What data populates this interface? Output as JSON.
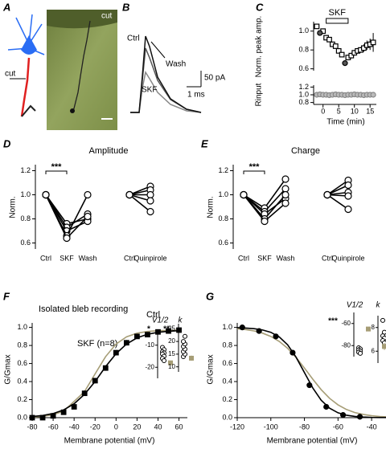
{
  "panel_a": {
    "label": "A",
    "cut_top": "cut",
    "cut_left": "cut"
  },
  "panel_b": {
    "label": "B",
    "ctrl": "Ctrl",
    "wash": "Wash",
    "skf": "SKF",
    "scale_current": "50 pA",
    "scale_time": "1 ms"
  },
  "chart_data": [
    {
      "type": "scatter",
      "panel": "C",
      "ylabel": "Norm. peak amp.",
      "xlim": [
        -3,
        17
      ],
      "ylim": [
        0.58,
        1.1
      ],
      "yticks": [
        0.6,
        0.8,
        {
          "value": 1,
          "label": "1.0"
        }
      ],
      "bar": {
        "label": "SKF",
        "start": 1,
        "end": 8
      },
      "series": [
        {
          "color": "#000000",
          "marker": "square",
          "fill": "#ffffff",
          "x": [
            -2,
            0,
            1,
            2,
            3,
            4,
            5,
            6,
            8,
            9,
            10,
            11,
            12,
            13,
            14,
            15,
            16
          ],
          "values": [
            1.05,
            1.0,
            0.93,
            0.91,
            0.86,
            0.84,
            0.79,
            0.75,
            0.72,
            0.74,
            0.77,
            0.79,
            0.8,
            0.82,
            0.85,
            0.86,
            0.88
          ],
          "errors": [
            0.02,
            0.02,
            0.02,
            0.02,
            0.02,
            0.02,
            0.02,
            0.02,
            0.03,
            0.03,
            0.03,
            0.03,
            0.03,
            0.04,
            0.05,
            0.06,
            0.1
          ]
        },
        {
          "color": "#000000",
          "marker": "circle",
          "fill": "#555555",
          "x": [
            -1,
            7
          ],
          "values": [
            0.98,
            0.66
          ],
          "errors": [
            0.02,
            0.02
          ]
        }
      ]
    },
    {
      "type": "scatter",
      "ylabel": "Rinput",
      "xlabel": "Time (min)",
      "xlim": [
        -3,
        17
      ],
      "xticks": [
        0,
        5,
        10,
        15
      ],
      "ylim": [
        0.75,
        1.25
      ],
      "yticks": [
        0.8,
        {
          "value": 1,
          "label": "1.0"
        },
        1.2
      ],
      "series": [
        {
          "color": "#888888",
          "marker": "circle",
          "fill": "#bbbbbb",
          "x": [
            -2,
            -1,
            0,
            1,
            2,
            3,
            4,
            5,
            6,
            7,
            8,
            9,
            10,
            11,
            12,
            13,
            14,
            15,
            16
          ],
          "values": [
            1.0,
            1.01,
            1.0,
            1.0,
            0.99,
            1.0,
            1.01,
            1.0,
            1.0,
            0.99,
            1.0,
            1.0,
            1.01,
            1.0,
            1.0,
            0.99,
            1.0,
            1.0,
            1.0
          ]
        }
      ]
    },
    {
      "type": "line",
      "panel": "D",
      "title": "Amplitude",
      "ylabel": "Norm.",
      "categories": [
        "Ctrl",
        "SKF",
        "Wash",
        null,
        "Ctrl",
        "Quinpirole"
      ],
      "ylim": [
        0.55,
        1.25
      ],
      "yticks": [
        0.6,
        0.8,
        {
          "value": 1,
          "label": "1.0"
        },
        1.2
      ],
      "significance": "***",
      "series": [
        {
          "color": "#000000",
          "marker": "circle",
          "fill": "#ffffff",
          "line": true,
          "values": [
            1,
            0.76,
            0.8,
            null,
            null,
            null
          ]
        },
        {
          "color": "#000000",
          "marker": "circle",
          "fill": "#ffffff",
          "line": true,
          "values": [
            1,
            0.73,
            0.84,
            null,
            null,
            null
          ]
        },
        {
          "color": "#000000",
          "marker": "circle",
          "fill": "#ffffff",
          "line": true,
          "values": [
            1,
            0.7,
            0.78,
            null,
            null,
            null
          ]
        },
        {
          "color": "#000000",
          "marker": "circle",
          "fill": "#ffffff",
          "line": true,
          "values": [
            1,
            0.66,
            1.0,
            null,
            null,
            null
          ]
        },
        {
          "color": "#000000",
          "marker": "circle",
          "fill": "#ffffff",
          "line": true,
          "values": [
            1,
            0.64,
            0.82,
            null,
            null,
            null
          ]
        },
        {
          "color": "#000000",
          "marker": "circle",
          "fill": "#ffffff",
          "line": true,
          "values": [
            null,
            null,
            null,
            null,
            1,
            1.07
          ]
        },
        {
          "color": "#000000",
          "marker": "circle",
          "fill": "#ffffff",
          "line": true,
          "values": [
            null,
            null,
            null,
            null,
            1,
            1.04
          ]
        },
        {
          "color": "#000000",
          "marker": "circle",
          "fill": "#ffffff",
          "line": true,
          "values": [
            null,
            null,
            null,
            null,
            1,
            1.0
          ]
        },
        {
          "color": "#000000",
          "marker": "circle",
          "fill": "#ffffff",
          "line": true,
          "values": [
            null,
            null,
            null,
            null,
            1,
            0.95
          ]
        },
        {
          "color": "#000000",
          "marker": "circle",
          "fill": "#ffffff",
          "line": true,
          "values": [
            null,
            null,
            null,
            null,
            1,
            0.86
          ]
        }
      ]
    },
    {
      "type": "line",
      "panel": "E",
      "title": "Charge",
      "ylabel": "Norm.",
      "categories": [
        "Ctrl",
        "SKF",
        "Wash",
        null,
        "Ctrl",
        "Quinpirole"
      ],
      "ylim": [
        0.55,
        1.25
      ],
      "yticks": [
        0.6,
        0.8,
        {
          "value": 1,
          "label": "1.0"
        },
        1.2
      ],
      "significance": "***",
      "series": [
        {
          "color": "#000000",
          "marker": "circle",
          "fill": "#ffffff",
          "line": true,
          "values": [
            1,
            0.89,
            1.13,
            null,
            null,
            null
          ]
        },
        {
          "color": "#000000",
          "marker": "circle",
          "fill": "#ffffff",
          "line": true,
          "values": [
            1,
            0.86,
            1.05,
            null,
            null,
            null
          ]
        },
        {
          "color": "#000000",
          "marker": "circle",
          "fill": "#ffffff",
          "line": true,
          "values": [
            1,
            0.84,
            0.97,
            null,
            null,
            null
          ]
        },
        {
          "color": "#000000",
          "marker": "circle",
          "fill": "#ffffff",
          "line": true,
          "values": [
            1,
            0.8,
            1.0,
            null,
            null,
            null
          ]
        },
        {
          "color": "#000000",
          "marker": "circle",
          "fill": "#ffffff",
          "line": true,
          "values": [
            1,
            0.78,
            0.93,
            null,
            null,
            null
          ]
        },
        {
          "color": "#000000",
          "marker": "circle",
          "fill": "#ffffff",
          "line": true,
          "values": [
            null,
            null,
            null,
            null,
            1,
            1.12
          ]
        },
        {
          "color": "#000000",
          "marker": "circle",
          "fill": "#ffffff",
          "line": true,
          "values": [
            null,
            null,
            null,
            null,
            1,
            1.08
          ]
        },
        {
          "color": "#000000",
          "marker": "circle",
          "fill": "#ffffff",
          "line": true,
          "values": [
            null,
            null,
            null,
            null,
            1,
            1.02
          ]
        },
        {
          "color": "#000000",
          "marker": "circle",
          "fill": "#ffffff",
          "line": true,
          "values": [
            null,
            null,
            null,
            null,
            1,
            0.99
          ]
        },
        {
          "color": "#000000",
          "marker": "circle",
          "fill": "#ffffff",
          "line": true,
          "values": [
            null,
            null,
            null,
            null,
            1,
            0.88
          ]
        }
      ]
    },
    {
      "type": "line",
      "panel": "F",
      "ylabel": "G/Gmax",
      "xlabel": "Membrane potential (mV)",
      "xlim": [
        -80,
        68
      ],
      "xticks": [
        -80,
        -60,
        -40,
        -20,
        0,
        20,
        40,
        60
      ],
      "ylim": [
        0,
        1.05
      ],
      "yticks": [
        {
          "value": 0,
          "label": "0.0"
        },
        0.2,
        0.4,
        0.6,
        0.8,
        {
          "value": 1,
          "label": "1.0"
        }
      ],
      "annotations": [
        "Isolated bleb recording",
        "Ctrl",
        "SKF (n=8)"
      ],
      "series": [
        {
          "color": "#a69d76",
          "marker": "none",
          "line": true,
          "x": [
            -80,
            -70,
            -60,
            -50,
            -40,
            -30,
            -20,
            -10,
            0,
            10,
            20,
            30,
            40,
            50,
            60
          ],
          "values": [
            0.006,
            0.015,
            0.033,
            0.073,
            0.18,
            0.29,
            0.485,
            0.676,
            0.816,
            0.896,
            0.936,
            0.955,
            0.964,
            0.967,
            0.969
          ]
        },
        {
          "color": "#000000",
          "marker": "none",
          "line": true,
          "x": [
            -80,
            -70,
            -60,
            -50,
            -40,
            -30,
            -20,
            -10,
            0,
            10,
            20,
            30,
            40,
            50,
            60
          ],
          "values": [
            0.013,
            0.024,
            0.046,
            0.086,
            0.154,
            0.26,
            0.4,
            0.565,
            0.709,
            0.816,
            0.884,
            0.924,
            0.946,
            0.957,
            0.964
          ]
        },
        {
          "color": "#000000",
          "marker": "square",
          "fill": "#000000",
          "x": [
            -80,
            -70,
            -60,
            -50,
            -40,
            -30,
            -20,
            -10,
            0,
            10,
            20,
            30,
            40,
            50,
            60
          ],
          "values": [
            0.0,
            0.0,
            0.02,
            0.06,
            0.12,
            0.27,
            0.41,
            0.55,
            0.72,
            0.83,
            0.9,
            0.92,
            0.95,
            0.96,
            0.97
          ],
          "errors": [
            0.01,
            0.01,
            0.01,
            0.02,
            0.02,
            0.03,
            0.03,
            0.03,
            0.03,
            0.03,
            0.02,
            0.02,
            0.02,
            0.02,
            0.02
          ]
        }
      ]
    },
    {
      "type": "strip",
      "title": "V1/2",
      "significance": "*",
      "ylim": [
        -25,
        -5
      ],
      "yticks": [
        -10,
        -20
      ],
      "values": [
        -11,
        -12,
        -13,
        -13.5,
        -14,
        -15,
        -16,
        -17
      ],
      "color": "#000000",
      "mean": -18,
      "mean_error": 1,
      "mean_color": "#a69d76"
    },
    {
      "type": "strip",
      "title": "k",
      "significance": "**",
      "ylim": [
        8,
        27
      ],
      "yticks": [
        25,
        20,
        15,
        10
      ],
      "values": [
        14,
        15,
        16,
        17,
        18,
        19,
        20,
        22
      ],
      "color": "#000000",
      "mean": 13.4,
      "mean_error": 1,
      "mean_color": "#a69d76"
    },
    {
      "type": "line",
      "panel": "G",
      "ylabel": "G/Gmax",
      "xlabel": "Membrane potential (mV)",
      "xlim": [
        -120,
        -30
      ],
      "xticks": [
        -120,
        -100,
        -80,
        -60,
        -40
      ],
      "ylim": [
        0,
        1.05
      ],
      "yticks": [
        {
          "value": 0,
          "label": "0.0"
        },
        0.2,
        0.4,
        0.6,
        0.8,
        {
          "value": 1,
          "label": "1.0"
        }
      ],
      "series": [
        {
          "color": "#a69d76",
          "marker": "none",
          "line": true,
          "x": [
            -120,
            -115,
            -110,
            -105,
            -100,
            -95,
            -90,
            -85,
            -80,
            -75,
            -70,
            -65,
            -60,
            -55,
            -50,
            -45,
            -40,
            -35,
            -30
          ],
          "values": [
            0.985,
            0.976,
            0.961,
            0.937,
            0.9,
            0.845,
            0.769,
            0.668,
            0.55,
            0.426,
            0.31,
            0.214,
            0.142,
            0.091,
            0.057,
            0.036,
            0.022,
            0.013,
            0.008
          ]
        },
        {
          "color": "#000000",
          "marker": "none",
          "line": true,
          "x": [
            -120,
            -115,
            -110,
            -105,
            -100,
            -95,
            -90,
            -85,
            -80,
            -75,
            -70,
            -65,
            -60,
            -55,
            -50,
            -45,
            -40,
            -35,
            -30
          ],
          "values": [
            0.997,
            0.993,
            0.986,
            0.972,
            0.946,
            0.895,
            0.807,
            0.671,
            0.5,
            0.329,
            0.193,
            0.105,
            0.054,
            0.027,
            0.014,
            0.007,
            0.003,
            0.002,
            0.001
          ]
        },
        {
          "color": "#000000",
          "marker": "circle",
          "fill": "#000000",
          "x": [
            -117,
            -107,
            -97,
            -87,
            -77,
            -67,
            -57,
            -47
          ],
          "values": [
            1.0,
            0.96,
            0.9,
            0.72,
            0.36,
            0.12,
            0.03,
            0.01
          ],
          "errors": [
            0.01,
            0.01,
            0.02,
            0.03,
            0.03,
            0.02,
            0.01,
            0.01
          ]
        }
      ]
    },
    {
      "type": "strip",
      "title": "V1/2",
      "significance": "***",
      "ylim": [
        -90,
        -50
      ],
      "yticks": [
        -60,
        -80
      ],
      "values": [
        -82,
        -83,
        -84,
        -85,
        -86,
        -87
      ],
      "color": "#000000",
      "mean": -65,
      "mean_error": 2,
      "mean_color": "#a69d76"
    },
    {
      "type": "strip",
      "title": "k",
      "ylim": [
        5,
        9
      ],
      "yticks": [
        8,
        6
      ],
      "values": [
        8.6,
        7.6,
        7.3,
        7.1,
        6.9,
        6.7
      ],
      "color": "#000000",
      "mean": 6.4,
      "mean_error": 0.3,
      "mean_color": "#a69d76"
    }
  ]
}
